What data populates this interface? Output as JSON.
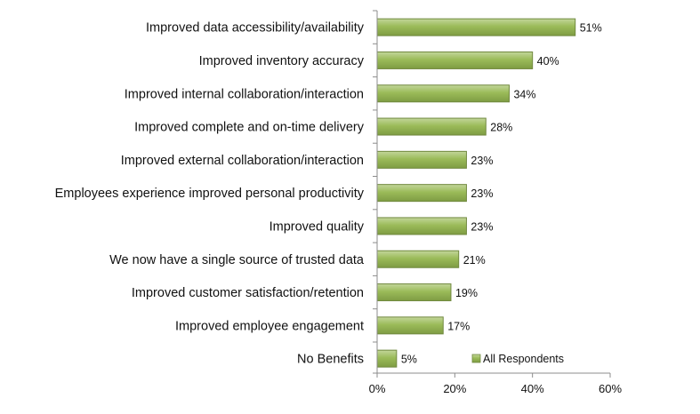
{
  "chart_data": {
    "type": "bar",
    "orientation": "horizontal",
    "categories": [
      "Improved data accessibility/availability",
      "Improved inventory accuracy",
      "Improved internal collaboration/interaction",
      "Improved complete and on-time delivery",
      "Improved external collaboration/interaction",
      "Employees experience improved personal productivity",
      "Improved quality",
      "We now have a single source of trusted data",
      "Improved customer satisfaction/retention",
      "Improved employee engagement",
      "No Benefits"
    ],
    "series": [
      {
        "name": "All Respondents",
        "values": [
          51,
          40,
          34,
          28,
          23,
          23,
          23,
          21,
          19,
          17,
          5
        ],
        "labels": [
          "51%",
          "40%",
          "34%",
          "28%",
          "23%",
          "23%",
          "23%",
          "21%",
          "19%",
          "17%",
          "5%"
        ],
        "color": "#9BBB59"
      }
    ],
    "xlim": [
      0,
      60
    ],
    "xticks": [
      0,
      20,
      40,
      60
    ],
    "xtick_labels": [
      "0%",
      "20%",
      "40%",
      "60%"
    ],
    "title": "",
    "xlabel": "",
    "ylabel": "",
    "grid": false,
    "legend": {
      "position": "bottom-right",
      "entries": [
        "All Respondents"
      ]
    }
  },
  "colors": {
    "bar_fill": "#9BBB59",
    "bar_stroke": "#71893F",
    "axis": "#8c8c8c"
  }
}
